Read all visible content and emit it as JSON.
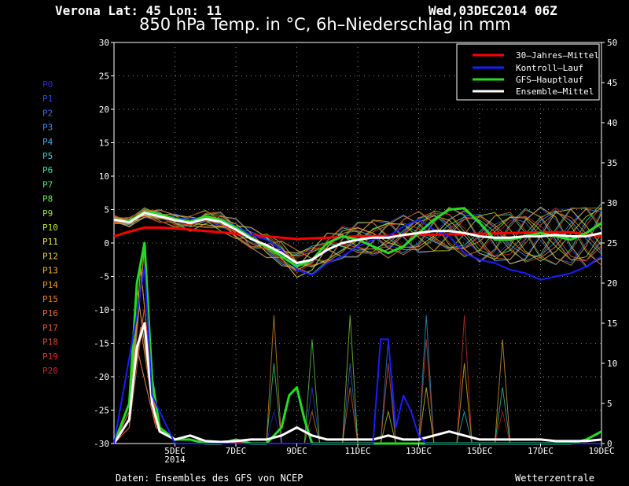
{
  "header": {
    "location": "Verona   Lat: 45 Lon: 11",
    "datetime": "Wed,03DEC2014 06Z",
    "title": "850 hPa Temp. in °C, 6h–Niederschlag in mm"
  },
  "footer": {
    "source": "Daten: Ensembles des GFS von NCEP",
    "brand": "Wetterzentrale"
  },
  "legend": [
    {
      "label": "30–Jahres–Mittel",
      "color": "#ff0000"
    },
    {
      "label": "Kontroll–Lauf",
      "color": "#1a1aff"
    },
    {
      "label": "GFS–Hauptlauf",
      "color": "#22dd22"
    },
    {
      "label": "Ensemble–Mittel",
      "color": "#ffffff"
    }
  ],
  "members": [
    {
      "label": "P0",
      "color": "#2626e6"
    },
    {
      "label": "P1",
      "color": "#2b4cf0"
    },
    {
      "label": "P2",
      "color": "#2f6cf5"
    },
    {
      "label": "P3",
      "color": "#3090f5"
    },
    {
      "label": "P4",
      "color": "#30b0f0"
    },
    {
      "label": "P5",
      "color": "#30d0e0"
    },
    {
      "label": "P6",
      "color": "#30e0b0"
    },
    {
      "label": "P7",
      "color": "#40e880"
    },
    {
      "label": "P8",
      "color": "#60ea50"
    },
    {
      "label": "P9",
      "color": "#90ea30"
    },
    {
      "label": "P10",
      "color": "#c0ea20"
    },
    {
      "label": "P11",
      "color": "#e8e820"
    },
    {
      "label": "P12",
      "color": "#f0d020"
    },
    {
      "label": "P13",
      "color": "#f0b020"
    },
    {
      "label": "P14",
      "color": "#f09620"
    },
    {
      "label": "P15",
      "color": "#f08020"
    },
    {
      "label": "P16",
      "color": "#ee6a22"
    },
    {
      "label": "P17",
      "color": "#ea5624"
    },
    {
      "label": "P18",
      "color": "#e64226"
    },
    {
      "label": "P19",
      "color": "#e03026"
    },
    {
      "label": "P20",
      "color": "#d81e22"
    }
  ],
  "chart_data": {
    "type": "line",
    "left_axis": {
      "label": "850 hPa Temp. in °C",
      "min": -30,
      "max": 30,
      "ticks": [
        30,
        25,
        20,
        15,
        10,
        5,
        0,
        -5,
        -10,
        -15,
        -20,
        -25,
        -30
      ]
    },
    "right_axis": {
      "label": "6h-Niederschlag in mm",
      "min": 0,
      "max": 50,
      "ticks": [
        50,
        45,
        40,
        35,
        30,
        25,
        20,
        15,
        10,
        5,
        0
      ]
    },
    "x_range": [
      0,
      64
    ],
    "x_ticks": [
      {
        "x": 8,
        "label": "5DEC",
        "sub": "2014"
      },
      {
        "x": 16,
        "label": "7DEC"
      },
      {
        "x": 24,
        "label": "9DEC"
      },
      {
        "x": 32,
        "label": "11DEC"
      },
      {
        "x": 40,
        "label": "13DEC"
      },
      {
        "x": 48,
        "label": "15DEC"
      },
      {
        "x": 56,
        "label": "17DEC"
      },
      {
        "x": 64,
        "label": "19DEC"
      }
    ],
    "grid": true,
    "series": [
      {
        "name": "30-Jahres-Mittel",
        "axis": "temp",
        "color": "#ff0000",
        "x": [
          0,
          2,
          4,
          6,
          8,
          12,
          16,
          20,
          24,
          28,
          32,
          36,
          40,
          44,
          48,
          52,
          56,
          60,
          64
        ],
        "y": [
          1.0,
          1.7,
          2.3,
          2.3,
          2.2,
          1.8,
          1.4,
          1.0,
          0.6,
          0.8,
          1.0,
          1.1,
          1.2,
          1.3,
          1.4,
          1.5,
          1.6,
          1.6,
          1.0
        ]
      },
      {
        "name": "Kontroll-Lauf",
        "axis": "temp",
        "color": "#1a1aff",
        "x": [
          0,
          2,
          4,
          6,
          8,
          10,
          12,
          14,
          16,
          18,
          20,
          22,
          24,
          26,
          28,
          30,
          32,
          34,
          36,
          38,
          40,
          42,
          44,
          46,
          48,
          50,
          52,
          54,
          56,
          58,
          60,
          62,
          64
        ],
        "y": [
          3.5,
          3.2,
          4.5,
          4.2,
          3.8,
          3.5,
          4.0,
          3.6,
          2.5,
          1.2,
          0.5,
          -1.0,
          -4.0,
          -4.8,
          -3.0,
          -2.0,
          -0.5,
          0.5,
          1.0,
          2.5,
          3.5,
          2.0,
          1.0,
          -1.5,
          -2.5,
          -3.0,
          -4.0,
          -4.5,
          -5.5,
          -5.0,
          -4.5,
          -3.5,
          -2.0
        ]
      },
      {
        "name": "GFS-Hauptlauf",
        "axis": "temp",
        "color": "#22dd22",
        "x": [
          0,
          2,
          4,
          6,
          8,
          10,
          12,
          14,
          16,
          18,
          20,
          22,
          24,
          26,
          28,
          30,
          32,
          34,
          36,
          38,
          40,
          42,
          44,
          46,
          48,
          50,
          52,
          54,
          56,
          58,
          60,
          62,
          64
        ],
        "y": [
          3.5,
          3.3,
          4.7,
          4.3,
          3.6,
          3.2,
          4.0,
          3.5,
          2.3,
          0.8,
          -0.5,
          -2.0,
          -3.5,
          -2.5,
          0.0,
          1.0,
          0.5,
          -0.5,
          -1.5,
          -0.5,
          1.5,
          3.5,
          5.0,
          5.2,
          3.0,
          0.5,
          0.5,
          1.0,
          1.5,
          1.0,
          0.5,
          1.5,
          3.0
        ]
      },
      {
        "name": "Ensemble-Mittel",
        "axis": "temp",
        "color": "#ffffff",
        "x": [
          0,
          2,
          4,
          6,
          8,
          10,
          12,
          14,
          16,
          18,
          20,
          22,
          24,
          26,
          28,
          30,
          32,
          34,
          36,
          38,
          40,
          42,
          44,
          46,
          48,
          50,
          52,
          54,
          56,
          58,
          60,
          62,
          64
        ],
        "y": [
          3.5,
          3.1,
          4.5,
          4.0,
          3.4,
          3.0,
          3.6,
          3.2,
          2.0,
          0.6,
          -0.3,
          -1.5,
          -3.0,
          -2.5,
          -1.0,
          0.0,
          0.5,
          0.8,
          0.8,
          1.2,
          1.5,
          1.8,
          1.8,
          1.5,
          1.0,
          0.8,
          0.8,
          1.0,
          1.0,
          1.2,
          1.0,
          1.0,
          1.5
        ]
      },
      {
        "name": "GFS-Hauptlauf 6h-Niederschlag",
        "axis": "precip",
        "color": "#22dd22",
        "x": [
          0,
          2,
          3,
          4,
          5,
          6,
          8,
          10,
          12,
          14,
          16,
          18,
          20,
          22,
          23,
          24,
          25,
          26,
          28,
          30,
          32,
          34,
          36,
          38,
          40,
          42,
          44,
          46,
          48,
          50,
          52,
          54,
          56,
          58,
          60,
          62,
          64
        ],
        "y": [
          0,
          5,
          20,
          25,
          8,
          2,
          0.5,
          0.5,
          0,
          0,
          0.5,
          0,
          0,
          2,
          6,
          7,
          3,
          0,
          0,
          0,
          0,
          0,
          0,
          0,
          0,
          0,
          0,
          0,
          0,
          0,
          0,
          0,
          0,
          0,
          0,
          0.5,
          1.5
        ]
      },
      {
        "name": "Ensemble-Mittel 6h-Niederschlag",
        "axis": "precip",
        "color": "#ffffff",
        "x": [
          0,
          2,
          3,
          4,
          5,
          6,
          8,
          10,
          12,
          14,
          16,
          18,
          20,
          22,
          23,
          24,
          25,
          26,
          28,
          30,
          32,
          34,
          36,
          38,
          40,
          42,
          44,
          46,
          48,
          50,
          52,
          54,
          56,
          58,
          60,
          62,
          64
        ],
        "y": [
          0,
          3,
          12,
          15,
          5,
          1.5,
          0.5,
          1,
          0.3,
          0.2,
          0.3,
          0.5,
          0.5,
          1,
          1.5,
          2,
          1.5,
          1,
          0.5,
          0.5,
          0.5,
          0.5,
          1,
          0.5,
          0.5,
          1,
          1.5,
          1,
          0.5,
          0.5,
          0.5,
          0.5,
          0.5,
          0.3,
          0.3,
          0.3,
          0.5
        ]
      },
      {
        "name": "Kontroll-Lauf 6h-Niederschlag",
        "axis": "precip",
        "color": "#1a1aff",
        "x": [
          0,
          3,
          4,
          5,
          8,
          20,
          24,
          30,
          34,
          35,
          36,
          37,
          38,
          39,
          40,
          41,
          42,
          44,
          48,
          56,
          60,
          64
        ],
        "y": [
          0,
          16,
          22,
          6,
          0,
          0,
          0,
          0,
          0,
          13,
          13,
          2,
          6,
          4,
          1,
          0,
          0,
          0,
          0,
          0,
          0,
          0
        ]
      }
    ]
  }
}
